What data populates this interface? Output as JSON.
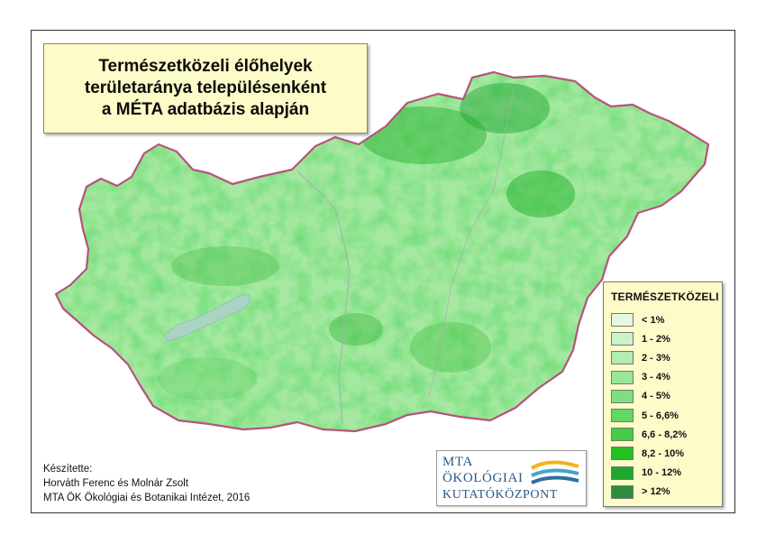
{
  "map": {
    "title_lines": [
      "Természetközeli élőhelyek",
      "területaránya településenként",
      "a MÉTA adatbázis alapján"
    ],
    "legend": {
      "title": "TERMÉSZETKÖZELI",
      "classes": [
        {
          "label": "< 1%",
          "color": "#e3f7e3"
        },
        {
          "label": "1 - 2%",
          "color": "#ccf2cc"
        },
        {
          "label": "2 - 3%",
          "color": "#b3ecb3"
        },
        {
          "label": "3 - 4%",
          "color": "#9ae59a"
        },
        {
          "label": "4 - 5%",
          "color": "#80de80"
        },
        {
          "label": "5 - 6,6%",
          "color": "#63d663"
        },
        {
          "label": "6,6 - 8,2%",
          "color": "#45cc45"
        },
        {
          "label": "8,2 - 10%",
          "color": "#23bf23"
        },
        {
          "label": "10 - 12%",
          "color": "#1fa830"
        },
        {
          "label": "> 12%",
          "color": "#2e8b3f"
        }
      ]
    },
    "credits": [
      "Készítette:",
      "Horváth Ferenc és Molnár Zsolt",
      "MTA ÖK Ökológiai és Botanikai Intézet, 2016"
    ],
    "logo": {
      "lines": [
        "MTA",
        "ÖKOLÓGIAI",
        "KUTATÓKÖZPONT"
      ]
    },
    "colors": {
      "border": "#b5547a",
      "lake": "#a9d3c3",
      "background_land": "#a5e8a0"
    }
  }
}
